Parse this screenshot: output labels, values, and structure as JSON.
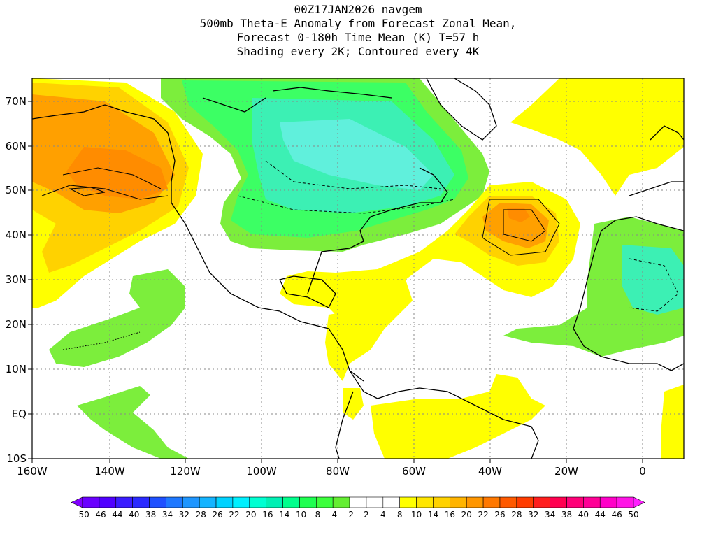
{
  "title": {
    "line1": "00Z17JAN2026 navgem",
    "line2": "500mb Theta-E Anomaly from Forecast Zonal Mean,",
    "line3": "Forecast 0-180h Time Mean (K) T=57 h",
    "line4": "Shading every 2K; Contoured every 4K"
  },
  "map": {
    "lon_labels": [
      "160W",
      "140W",
      "120W",
      "100W",
      "80W",
      "60W",
      "40W",
      "20W",
      "0"
    ],
    "lat_labels": [
      "70N",
      "60N",
      "50N",
      "40N",
      "30N",
      "20N",
      "10N",
      "EQ",
      "10S"
    ]
  },
  "colorbar": {
    "labels": [
      "-50",
      "-46",
      "-44",
      "-40",
      "-38",
      "-34",
      "-32",
      "-28",
      "-26",
      "-22",
      "-20",
      "-16",
      "-14",
      "-10",
      "-8",
      "-4",
      "-2",
      "2",
      "4",
      "8",
      "10",
      "14",
      "16",
      "20",
      "22",
      "26",
      "28",
      "32",
      "34",
      "38",
      "40",
      "44",
      "46",
      "50"
    ],
    "colors": [
      "#8000ff",
      "#6a00ff",
      "#5000ff",
      "#3a1cff",
      "#2a2aff",
      "#1e50ff",
      "#1e78ff",
      "#1e96ff",
      "#14b4ff",
      "#00d2ff",
      "#00f0ff",
      "#00ffd2",
      "#00f0b4",
      "#00ff8c",
      "#1eff50",
      "#3cff3c",
      "#64ee32",
      "#ffffff",
      "#ffffff",
      "#ffffff",
      "#ffff00",
      "#ffe600",
      "#ffd200",
      "#ffb400",
      "#ff9600",
      "#ff7800",
      "#ff5a00",
      "#ff3c00",
      "#ff1e1e",
      "#ff0050",
      "#ff0078",
      "#ff0096",
      "#ff00c8",
      "#ff14e6",
      "#ff1eff"
    ]
  },
  "fields": {
    "green": "#7cee3c",
    "lightgreen": "#3cff64",
    "teal": "#3cf0b4",
    "cyan": "#60f0dc",
    "yellow": "#ffff00",
    "orange_light": "#ffd200",
    "orange": "#ffa000",
    "orange_dark": "#ff8c00"
  }
}
